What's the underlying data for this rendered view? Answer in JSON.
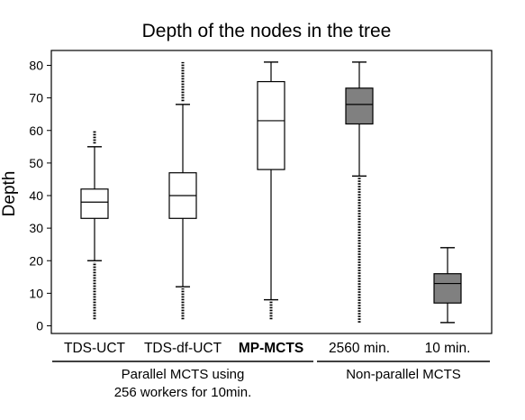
{
  "chart_data": {
    "type": "box",
    "title": "Depth of the nodes in the tree",
    "xlabel": "",
    "ylabel": "Depth",
    "ylim": [
      -2,
      85
    ],
    "yticks": [
      0,
      10,
      20,
      30,
      40,
      50,
      60,
      70,
      80
    ],
    "grid": false,
    "boxes": [
      {
        "label": "TDS-UCT",
        "bold": false,
        "color": "#ffffff",
        "whislo": 20,
        "q1": 33,
        "med": 38,
        "q3": 42,
        "whishi": 55,
        "fliers_low": [
          2,
          19.5
        ],
        "fliers_high": [
          56,
          60
        ]
      },
      {
        "label": "TDS-df-UCT",
        "bold": false,
        "color": "#ffffff",
        "whislo": 12,
        "q1": 33,
        "med": 40,
        "q3": 47,
        "whishi": 68,
        "fliers_low": [
          2,
          11.5
        ],
        "fliers_high": [
          69,
          81
        ]
      },
      {
        "label": "MP-MCTS",
        "bold": true,
        "color": "#ffffff",
        "whislo": 8,
        "q1": 48,
        "med": 63,
        "q3": 75,
        "whishi": 81,
        "fliers_low": [
          2,
          7.5
        ],
        "fliers_high": []
      },
      {
        "label": "2560 min.",
        "bold": false,
        "color": "#808080",
        "whislo": 46,
        "q1": 62,
        "med": 68,
        "q3": 73,
        "whishi": 81,
        "fliers_low": [
          1,
          45.5
        ],
        "fliers_high": []
      },
      {
        "label": "10 min.",
        "bold": false,
        "color": "#808080",
        "whislo": 1,
        "q1": 7,
        "med": 13,
        "q3": 16,
        "whishi": 24,
        "fliers_low": [],
        "fliers_high": []
      }
    ],
    "groups": [
      {
        "lines": [
          "Parallel MCTS using",
          "256 workers for 10min."
        ],
        "from": 0,
        "to": 2
      },
      {
        "lines": [
          "Non-parallel MCTS"
        ],
        "from": 3,
        "to": 4
      }
    ]
  }
}
